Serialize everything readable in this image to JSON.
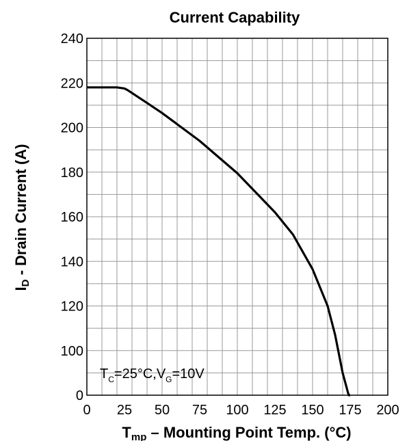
{
  "chart_data": {
    "type": "line",
    "title": "Current Capability",
    "ylabel": {
      "main": "I",
      "sub": "D",
      "rest": " - Drain Current (A)"
    },
    "xlabel": {
      "main": "T",
      "sub": "mp",
      "rest": " – Mounting Point Temp.  (°C)"
    },
    "xlim": [
      0,
      200
    ],
    "ylim": [
      80,
      240
    ],
    "grid": true,
    "x_ticks": [
      0,
      10,
      20,
      30,
      40,
      50,
      60,
      70,
      80,
      90,
      100,
      110,
      120,
      130,
      140,
      150,
      160,
      170,
      180,
      190,
      200
    ],
    "x_tick_labels": [
      "0",
      "25",
      "50",
      "75",
      "100",
      "125",
      "150",
      "175",
      "200"
    ],
    "x_tick_label_values": [
      0,
      25,
      50,
      75,
      100,
      125,
      150,
      175,
      200
    ],
    "y_ticks": [
      80,
      90,
      100,
      110,
      120,
      130,
      140,
      150,
      160,
      170,
      180,
      190,
      200,
      210,
      220,
      230,
      240
    ],
    "y_tick_labels": [
      "0",
      "100",
      "120",
      "140",
      "160",
      "180",
      "200",
      "220",
      "240"
    ],
    "y_tick_label_values": [
      80,
      100,
      120,
      140,
      160,
      180,
      200,
      220,
      240
    ],
    "series": [
      {
        "x": [
          0,
          10,
          20,
          25,
          27,
          40,
          50,
          60,
          75,
          100,
          125,
          137,
          150,
          160,
          165,
          170,
          172,
          174,
          175
        ],
        "y": [
          218,
          218,
          218,
          217.5,
          216.8,
          211,
          206.5,
          201.5,
          194,
          179.5,
          162,
          152,
          136.5,
          120,
          107,
          90,
          85,
          80,
          80
        ]
      }
    ],
    "annotation": {
      "t": "T",
      "t_sub": "C",
      "mid": "=25°C,V",
      "v_sub": "G",
      "end": "=10V"
    }
  }
}
